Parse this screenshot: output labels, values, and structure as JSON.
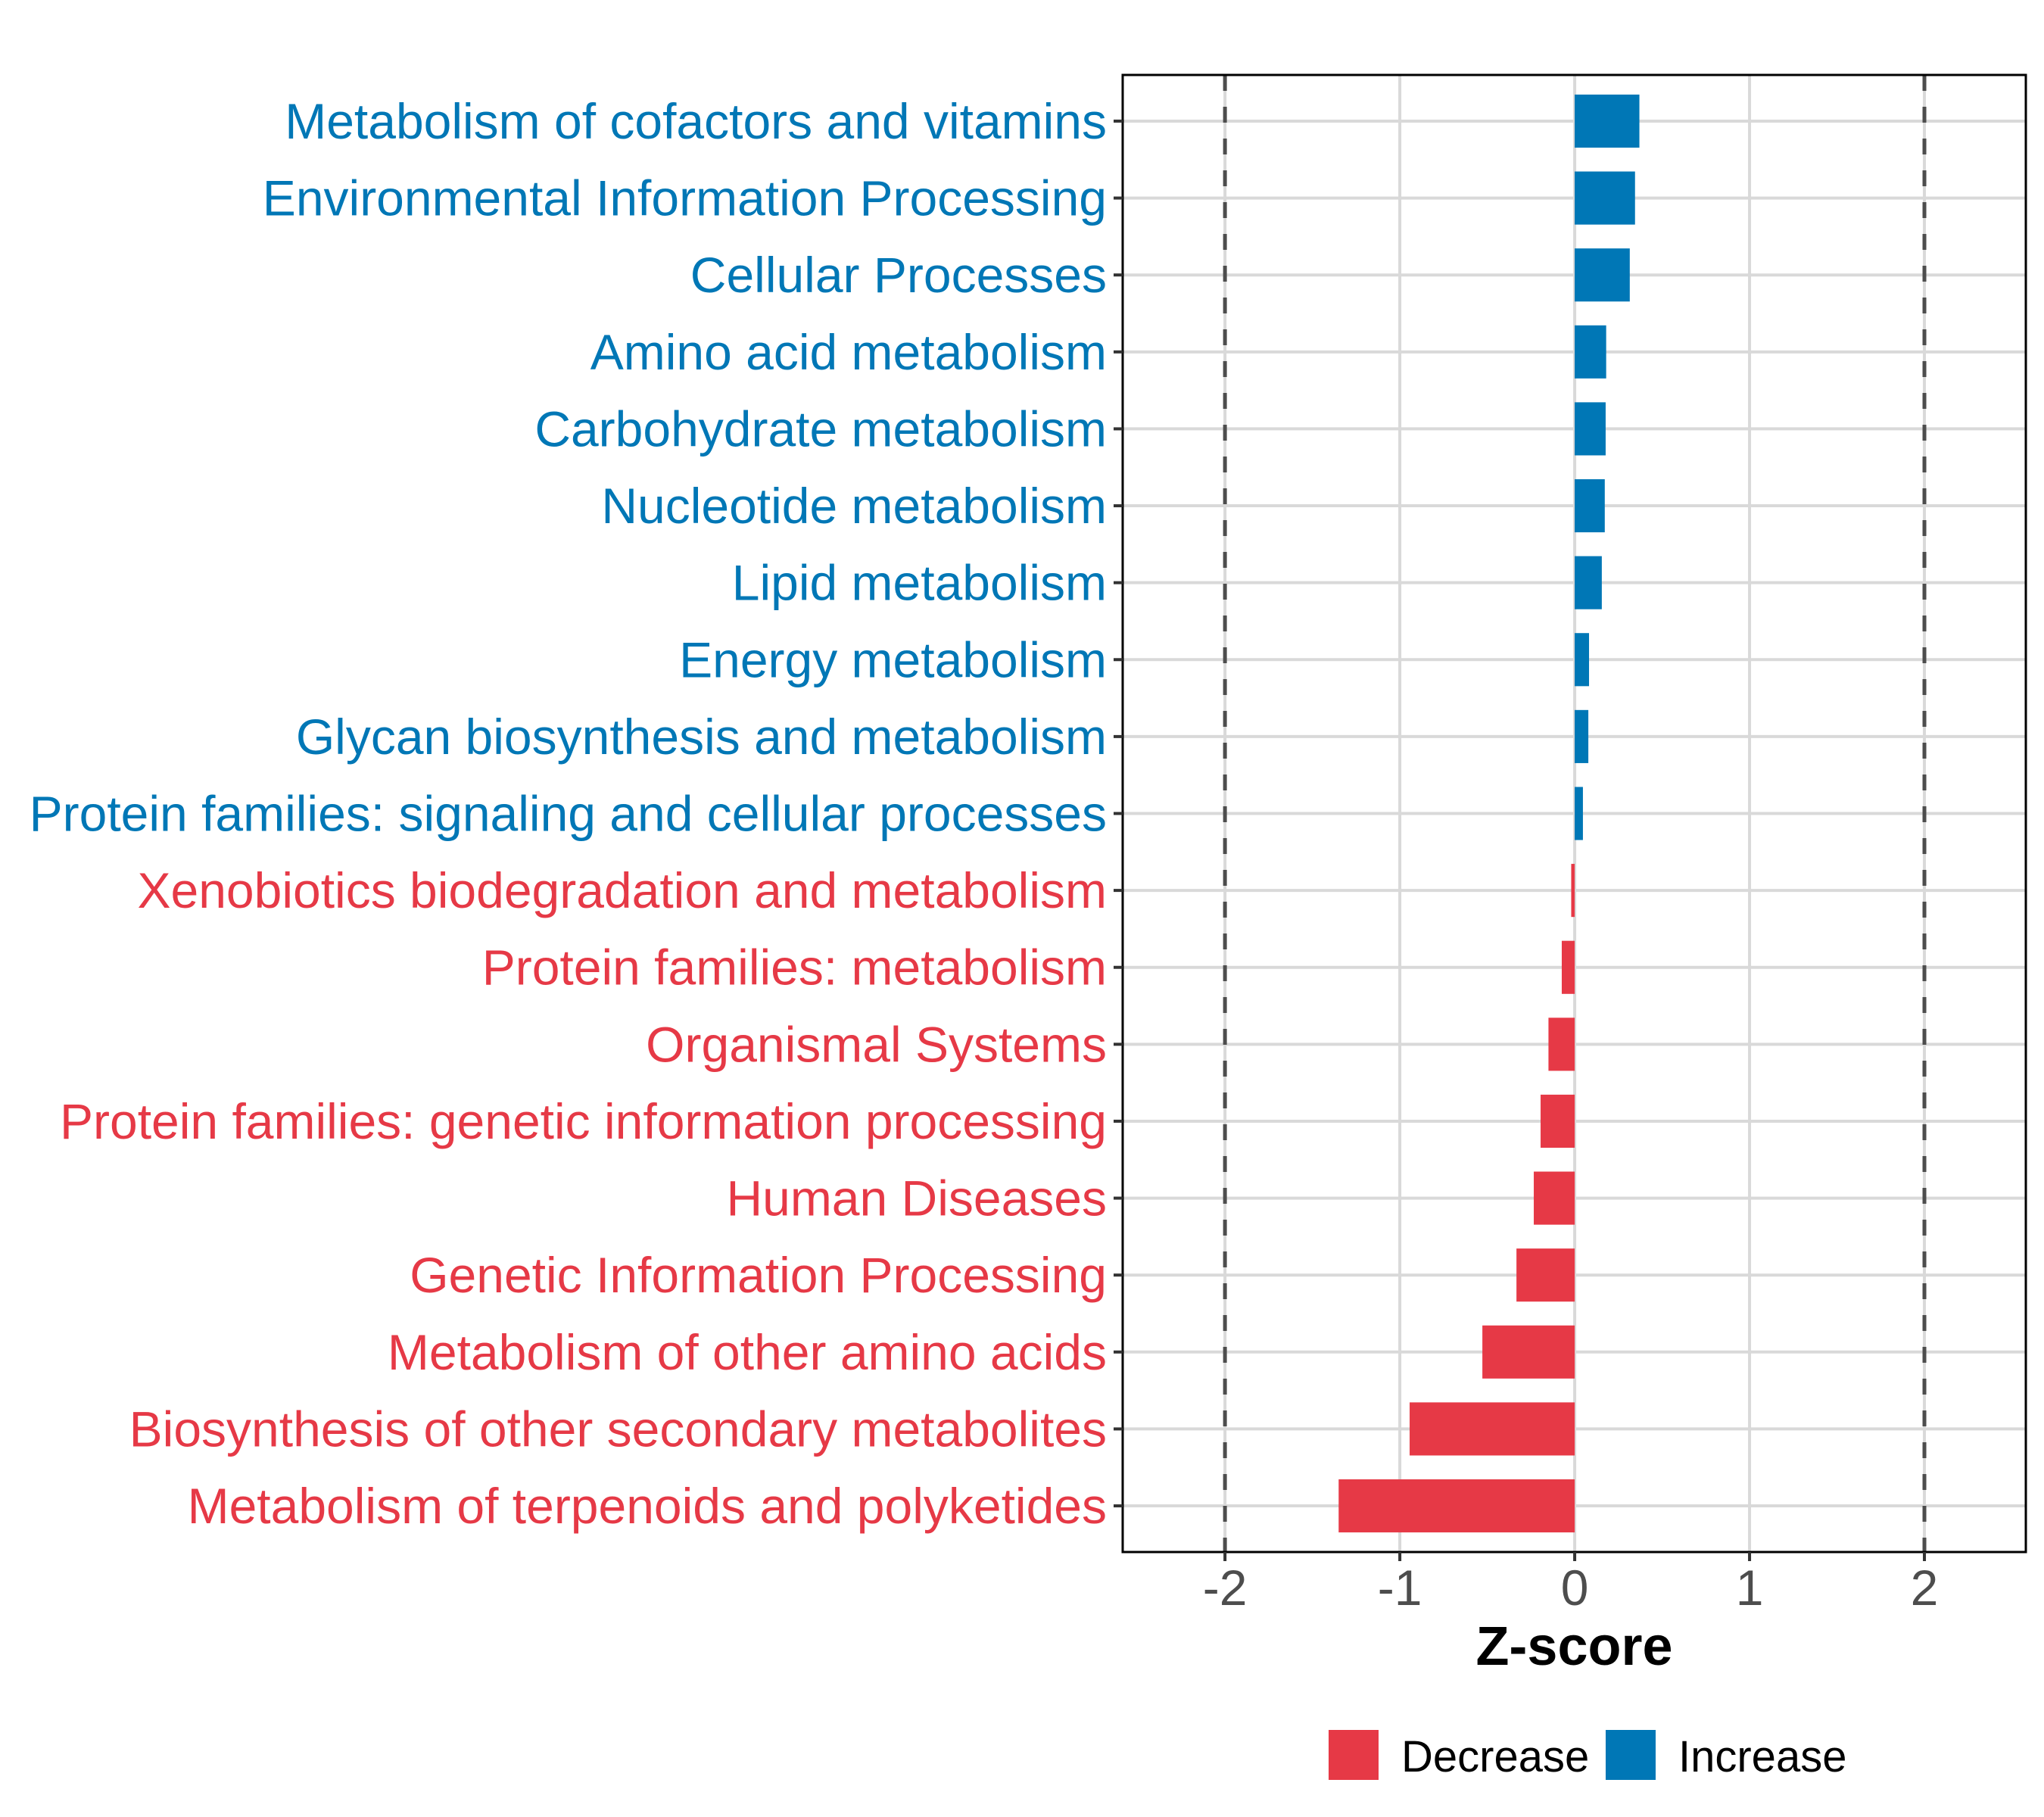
{
  "chart_data": {
    "type": "bar",
    "orientation": "horizontal",
    "title": "",
    "xlabel": "Z-score",
    "ylabel": "",
    "xlim": [
      -2.585,
      2.58
    ],
    "xticks": [
      -2,
      -1,
      0,
      1,
      2
    ],
    "xtick_labels": [
      "-2",
      "-1",
      "0",
      "1",
      "2"
    ],
    "reference_lines": [
      -2,
      2
    ],
    "grid": true,
    "legend": {
      "placement": "bottom",
      "entries": [
        {
          "label": "Decrease",
          "color": "#E63946"
        },
        {
          "label": "Increase",
          "color": "#0077B6"
        }
      ]
    },
    "categories": [
      "Metabolism of cofactors and vitamins",
      "Environmental Information Processing",
      "Cellular Processes",
      "Amino acid metabolism",
      "Carbohydrate metabolism",
      "Nucleotide metabolism",
      "Lipid metabolism",
      "Energy metabolism",
      "Glycan biosynthesis and metabolism",
      "Protein families: signaling and cellular processes",
      "Xenobiotics biodegradation and metabolism",
      "Protein families: metabolism",
      "Organismal Systems",
      "Protein families: genetic information processing",
      "Human Diseases",
      "Genetic Information Processing",
      "Metabolism of other amino acids",
      "Biosynthesis of other secondary metabolites",
      "Metabolism of terpenoids and polyketides"
    ],
    "values": [
      0.37,
      0.345,
      0.315,
      0.18,
      0.177,
      0.172,
      0.155,
      0.082,
      0.078,
      0.047,
      -0.02,
      -0.074,
      -0.15,
      -0.195,
      -0.234,
      -0.333,
      -0.528,
      -0.944,
      -1.35
    ],
    "groups": [
      "Increase",
      "Increase",
      "Increase",
      "Increase",
      "Increase",
      "Increase",
      "Increase",
      "Increase",
      "Increase",
      "Increase",
      "Decrease",
      "Decrease",
      "Decrease",
      "Decrease",
      "Decrease",
      "Decrease",
      "Decrease",
      "Decrease",
      "Decrease"
    ],
    "colors": {
      "Increase": "#0077B6",
      "Decrease": "#E63946"
    }
  }
}
